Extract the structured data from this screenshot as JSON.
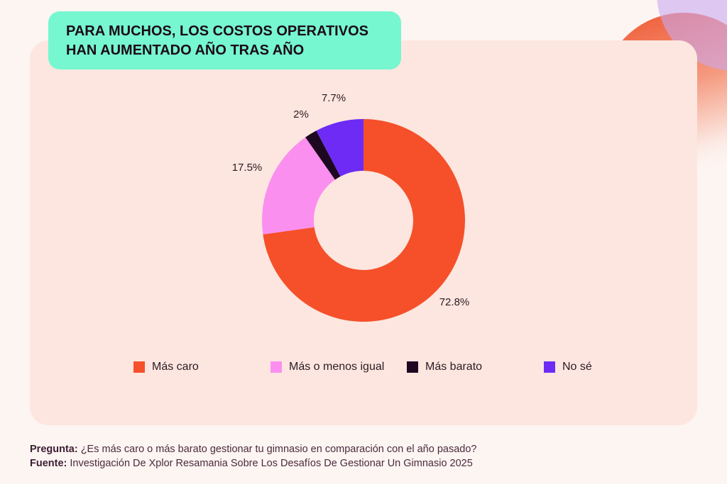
{
  "title": {
    "line1": "PARA MUCHOS, LOS COSTOS OPERATIVOS",
    "line2": "HAN AUMENTADO AÑO TRAS AÑO"
  },
  "chart_data": {
    "type": "pie",
    "donut": true,
    "categories": [
      "Más caro",
      "Más o menos igual",
      "Más barato",
      "No sé"
    ],
    "values": [
      72.8,
      17.5,
      2,
      7.7
    ],
    "labels": [
      "72.8%",
      "17.5%",
      "2%",
      "7.7%"
    ],
    "colors": [
      "#f5502a",
      "#fb8ff0",
      "#1e0720",
      "#6d2bf5"
    ],
    "legend": "bottom"
  },
  "footer": {
    "question_label": "Pregunta:",
    "question": "¿Es más caro o más barato gestionar tu gimnasio en comparación con el año pasado?",
    "source_label": "Fuente:",
    "source": "Investigación De Xplor Resamania Sobre Los Desafíos De Gestionar Un Gimnasio 2025"
  }
}
